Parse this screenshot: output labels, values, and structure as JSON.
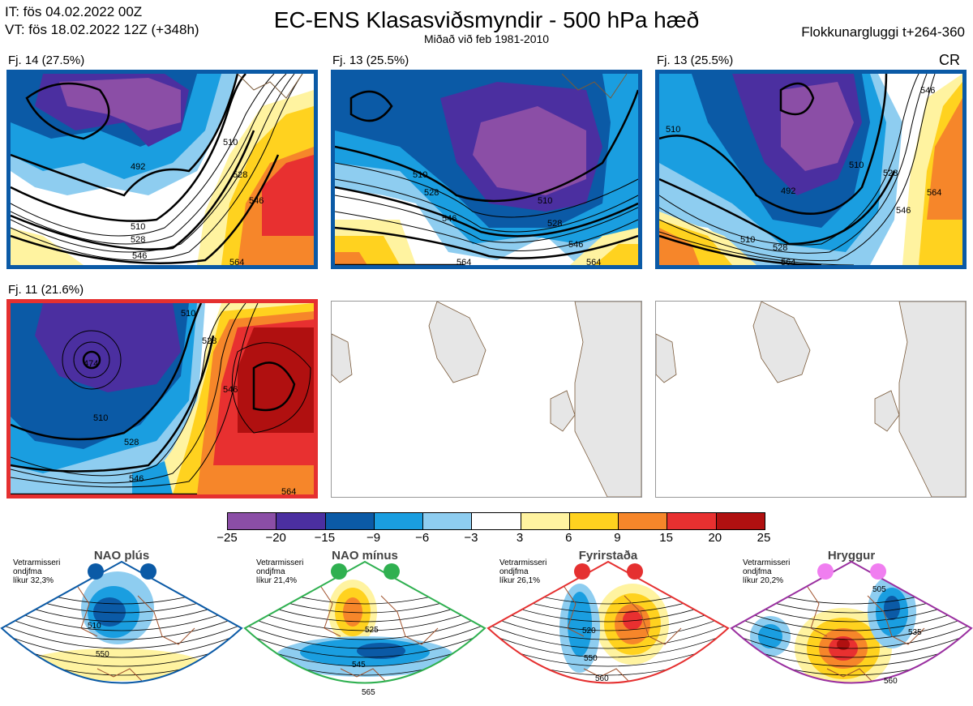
{
  "header": {
    "it_line": "IT: fös 04.02.2022 00Z",
    "vt_line": "VT: fös 18.02.2022 12Z  (+348h)",
    "title": "EC-ENS Klasasviðsmyndir - 500 hPa hæð",
    "subtitle": "Miðað við feb 1981-2010",
    "window": "Flokkunargluggi t+264-360"
  },
  "panels": [
    {
      "label": "Fj. 14 (27.5%)",
      "border": "#0b5aa6",
      "contours": [
        "492",
        "510",
        "528",
        "546",
        "510",
        "528",
        "546",
        "564"
      ]
    },
    {
      "label": "Fj. 13 (25.5%)",
      "border": "#0b5aa6",
      "contours": [
        "510",
        "528",
        "546",
        "510",
        "528",
        "546",
        "564",
        "564"
      ]
    },
    {
      "label": "Fj. 13 (25.5%)",
      "border": "#0b5aa6",
      "tag": "CR",
      "contours": [
        "510",
        "546",
        "492",
        "510",
        "528",
        "510",
        "528",
        "546",
        "564",
        "564"
      ]
    },
    {
      "label": "Fj. 11 (21.6%)",
      "border": "#e53030",
      "contours": [
        "510",
        "474",
        "510",
        "528",
        "528",
        "546",
        "546",
        "564"
      ]
    }
  ],
  "colorbar": {
    "colors": [
      "#8b4ea6",
      "#4b2fa0",
      "#0b5aa6",
      "#1a9ee0",
      "#8ecdf0",
      "#ffffff",
      "#fff3a0",
      "#ffd21f",
      "#f6862a",
      "#e83030",
      "#b01010"
    ],
    "ticks": [
      "−25",
      "−20",
      "−15",
      "−9",
      "−6",
      "−3",
      "3",
      "6",
      "9",
      "15",
      "20",
      "25"
    ]
  },
  "regimes": [
    {
      "title": "NAO plús",
      "info": [
        "Vetrarmisseri",
        "ondjfma",
        "líkur 32,3%"
      ],
      "border": "#0b5aa6",
      "dot": "#0b5aa6",
      "labels": [
        "510",
        "550"
      ]
    },
    {
      "title": "NAO mínus",
      "info": [
        "Vetrarmisseri",
        "ondjfma",
        "líkur 21,4%"
      ],
      "border": "#2fb050",
      "dot": "#2fb050",
      "labels": [
        "525",
        "545",
        "565"
      ]
    },
    {
      "title": "Fyrirstaða",
      "info": [
        "Vetrarmisseri",
        "ondjfma",
        "líkur 26,1%"
      ],
      "border": "#e53030",
      "dot": "#e53030",
      "labels": [
        "520",
        "550",
        "560"
      ]
    },
    {
      "title": "Hryggur",
      "info": [
        "Vetrarmisseri",
        "ondjfma",
        "líkur 20,2%"
      ],
      "border": "#9a2fa0",
      "dot": "#f07ef0",
      "labels": [
        "505",
        "535",
        "560"
      ]
    }
  ]
}
